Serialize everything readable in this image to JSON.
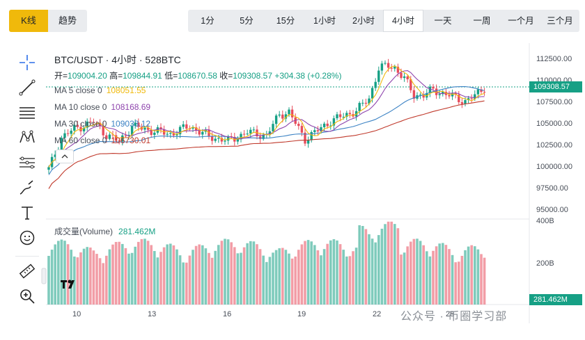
{
  "view_tabs": [
    "K线",
    "趋势"
  ],
  "timeframes": [
    "1分",
    "5分",
    "15分",
    "1小时",
    "2小时",
    "4小时",
    "一天",
    "一周",
    "一个月",
    "三个月"
  ],
  "active_timeframe": "4小时",
  "pair_title": "BTC/USDT · 4小时 · 528BTC",
  "ohlc": {
    "open_label": "开=",
    "open": "109004.20",
    "high_label": "高=",
    "high": "109844.91",
    "low_label": "低=",
    "low": "108670.58",
    "close_label": "收=",
    "close": "109308.57",
    "change": "+304.38 (+0.28%)"
  },
  "moving_averages": [
    {
      "label": "MA 5 close 0",
      "value": "108051.55",
      "color": "#f0b90b"
    },
    {
      "label": "MA 10 close 0",
      "value": "108168.69",
      "color": "#8e44ad"
    },
    {
      "label": "MA 30 close 0",
      "value": "109033.12",
      "color": "#3b82c4"
    },
    {
      "label": "MA 60 close 0",
      "value": "106730.01",
      "color": "#c0392b"
    }
  ],
  "price_axis": [
    "112500.00",
    "110000.00",
    "107500.00",
    "105000.00",
    "102500.00",
    "100000.00",
    "97500.00",
    "95000.00"
  ],
  "current_price_tag": "109308.57",
  "volume": {
    "label": "成交量(Volume)",
    "value": "281.462M",
    "axis": [
      "400B",
      "200B"
    ],
    "tag": "281.462M"
  },
  "x_axis": [
    "10",
    "13",
    "16",
    "19",
    "22",
    "25"
  ],
  "watermark": "公众号 · 币圈学习部",
  "colors": {
    "up": "#16a085",
    "down": "#e74c5c",
    "accent": "#f0b90b"
  },
  "tools": [
    "crosshair-icon",
    "trendline-icon",
    "horizontal-lines-icon",
    "pattern-icon",
    "measure-icon",
    "brush-icon",
    "text-icon",
    "emoji-icon",
    "ruler-icon",
    "zoom-icon"
  ]
}
